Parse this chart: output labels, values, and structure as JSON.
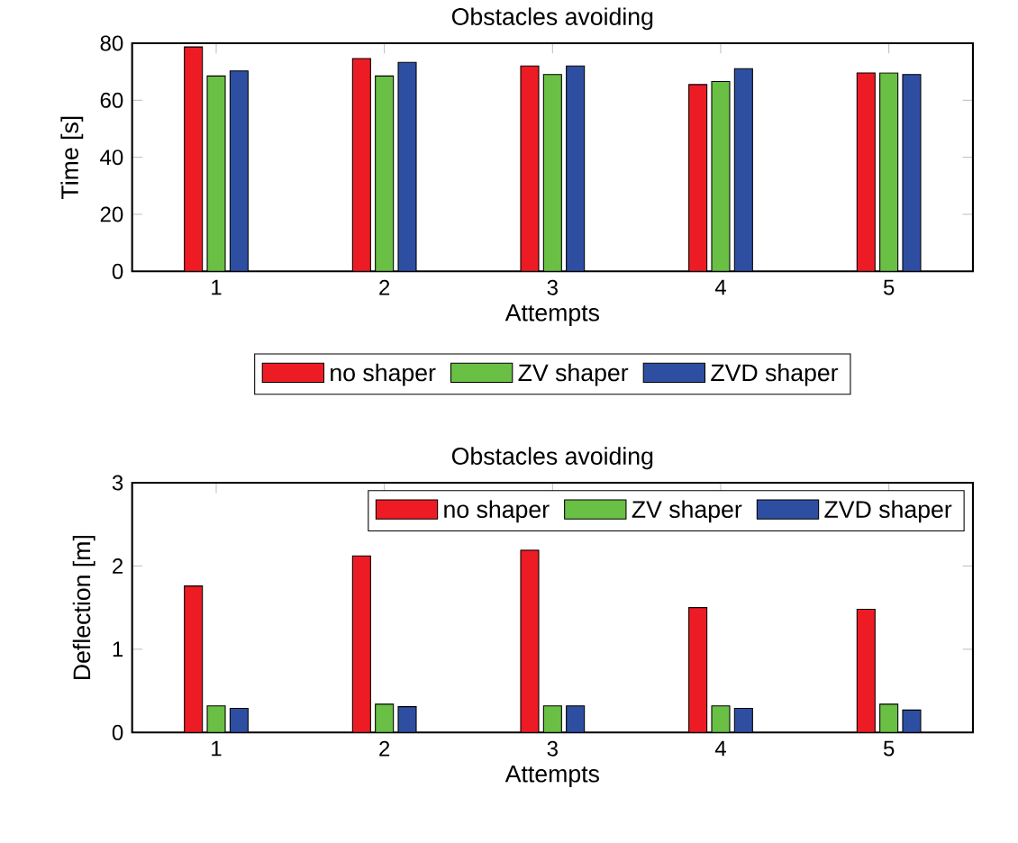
{
  "chart_data": [
    {
      "type": "bar",
      "title": "Obstacles avoiding",
      "xlabel": "Attempts",
      "ylabel": "Time [s]",
      "categories": [
        "1",
        "2",
        "3",
        "4",
        "5"
      ],
      "ylim": [
        0,
        80
      ],
      "yticks": [
        0,
        20,
        40,
        60,
        80
      ],
      "legend": "bottom",
      "series": [
        {
          "name": "no shaper",
          "color": "#ed1c24",
          "values": [
            78.7,
            74.6,
            72.0,
            65.5,
            69.6
          ]
        },
        {
          "name": "ZV shaper",
          "color": "#6abf45",
          "values": [
            68.5,
            68.5,
            69.0,
            66.6,
            69.6
          ]
        },
        {
          "name": "ZVD shaper",
          "color": "#2e4fa1",
          "values": [
            70.3,
            73.3,
            72.0,
            71.1,
            69.0
          ]
        }
      ]
    },
    {
      "type": "bar",
      "title": "Obstacles avoiding",
      "xlabel": "Attempts",
      "ylabel": "Deflection [m]",
      "categories": [
        "1",
        "2",
        "3",
        "4",
        "5"
      ],
      "ylim": [
        0,
        3
      ],
      "yticks": [
        0,
        1,
        2,
        3
      ],
      "legend": "top right",
      "series": [
        {
          "name": "no shaper",
          "color": "#ed1c24",
          "values": [
            1.76,
            2.12,
            2.19,
            1.5,
            1.48
          ]
        },
        {
          "name": "ZV shaper",
          "color": "#6abf45",
          "values": [
            0.32,
            0.34,
            0.32,
            0.32,
            0.34
          ]
        },
        {
          "name": "ZVD shaper",
          "color": "#2e4fa1",
          "values": [
            0.29,
            0.31,
            0.32,
            0.29,
            0.27
          ]
        }
      ]
    }
  ]
}
